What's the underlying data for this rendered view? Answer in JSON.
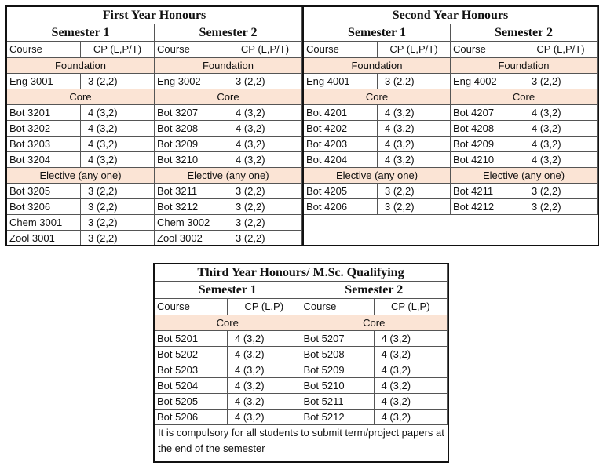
{
  "first_year": {
    "title": "First Year Honours",
    "semesters": [
      {
        "title": "Semester 1",
        "header": [
          "Course",
          "CP (L,P/T)"
        ],
        "sections": [
          {
            "name": "Foundation",
            "rows": [
              [
                "Eng 3001",
                "3 (2,2)"
              ]
            ]
          },
          {
            "name": "Core",
            "rows": [
              [
                "Bot 3201",
                "4 (3,2)"
              ],
              [
                "Bot 3202",
                "4 (3,2)"
              ],
              [
                "Bot 3203",
                "4 (3,2)"
              ],
              [
                "Bot 3204",
                "4 (3,2)"
              ]
            ]
          },
          {
            "name": "Elective (any one)",
            "rows": [
              [
                "Bot 3205",
                "3 (2,2)"
              ],
              [
                "Bot 3206",
                "3 (2,2)"
              ],
              [
                "Chem 3001",
                "3 (2,2)"
              ],
              [
                "Zool 3001",
                "3 (2,2)"
              ]
            ]
          }
        ]
      },
      {
        "title": "Semester 2",
        "header": [
          "Course",
          "CP (L,P/T)"
        ],
        "sections": [
          {
            "name": "Foundation",
            "rows": [
              [
                "Eng 3002",
                "3 (2,2)"
              ]
            ]
          },
          {
            "name": "Core",
            "rows": [
              [
                "Bot 3207",
                "4 (3,2)"
              ],
              [
                "Bot 3208",
                "4 (3,2)"
              ],
              [
                "Bot 3209",
                "4 (3,2)"
              ],
              [
                "Bot 3210",
                "4 (3,2)"
              ]
            ]
          },
          {
            "name": "Elective (any one)",
            "rows": [
              [
                "Bot 3211",
                "3 (2,2)"
              ],
              [
                "Bot 3212",
                "3 (2,2)"
              ],
              [
                "Chem 3002",
                "3 (2,2)"
              ],
              [
                "Zool 3002",
                "3 (2,2)"
              ]
            ]
          }
        ]
      }
    ]
  },
  "second_year": {
    "title": "Second Year Honours",
    "semesters": [
      {
        "title": "Semester 1",
        "header": [
          "Course",
          "CP (L,P/T)"
        ],
        "sections": [
          {
            "name": "Foundation",
            "rows": [
              [
                "Eng 4001",
                "3 (2,2)"
              ]
            ]
          },
          {
            "name": "Core",
            "rows": [
              [
                "Bot 4201",
                "4 (3,2)"
              ],
              [
                "Bot 4202",
                "4 (3,2)"
              ],
              [
                "Bot 4203",
                "4 (3,2)"
              ],
              [
                "Bot 4204",
                "4 (3,2)"
              ]
            ]
          },
          {
            "name": "Elective (any one)",
            "rows": [
              [
                "Bot 4205",
                "3 (2,2)"
              ],
              [
                "Bot 4206",
                "3 (2,2)"
              ]
            ]
          }
        ]
      },
      {
        "title": "Semester 2",
        "header": [
          "Course",
          "CP (L,P/T)"
        ],
        "sections": [
          {
            "name": "Foundation",
            "rows": [
              [
                "Eng 4002",
                "3 (2,2)"
              ]
            ]
          },
          {
            "name": "Core",
            "rows": [
              [
                "Bot 4207",
                "4 (3,2)"
              ],
              [
                "Bot 4208",
                "4 (3,2)"
              ],
              [
                "Bot 4209",
                "4 (3,2)"
              ],
              [
                "Bot 4210",
                "4 (3,2)"
              ]
            ]
          },
          {
            "name": "Elective (any one)",
            "rows": [
              [
                "Bot 4211",
                "3 (2,2)"
              ],
              [
                "Bot 4212",
                "3 (2,2)"
              ]
            ]
          }
        ]
      }
    ]
  },
  "third_year": {
    "title": "Third Year Honours/ M.Sc. Qualifying",
    "semesters": [
      {
        "title": "Semester 1",
        "header": [
          "Course",
          "CP (L,P)"
        ],
        "sections": [
          {
            "name": "Core",
            "rows": [
              [
                "Bot 5201",
                "4 (3,2)"
              ],
              [
                "Bot 5202",
                "4 (3,2)"
              ],
              [
                "Bot 5203",
                "4 (3,2)"
              ],
              [
                "Bot 5204",
                "4 (3,2)"
              ],
              [
                "Bot 5205",
                "4 (3,2)"
              ],
              [
                "Bot 5206",
                "4 (3,2)"
              ]
            ]
          }
        ]
      },
      {
        "title": "Semester 2",
        "header": [
          "Course",
          "CP (L,P)"
        ],
        "sections": [
          {
            "name": "Core",
            "rows": [
              [
                "Bot 5207",
                "4 (3,2)"
              ],
              [
                "Bot 5208",
                "4 (3,2)"
              ],
              [
                "Bot 5209",
                "4 (3,2)"
              ],
              [
                "Bot 5210",
                "4 (3,2)"
              ],
              [
                "Bot 5211",
                "4 (3,2)"
              ],
              [
                "Bot 5212",
                "4 (3,2)"
              ]
            ]
          }
        ]
      }
    ],
    "note": "It is compulsory for all students to submit term/project papers at the end of the semester"
  }
}
